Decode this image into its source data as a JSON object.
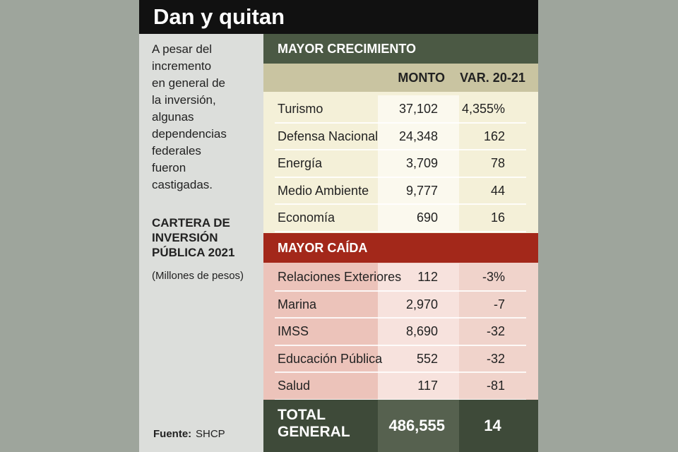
{
  "header": {
    "title": "Dan y quitan"
  },
  "sidebar": {
    "intro": [
      "A pesar del",
      "incremento",
      "en general de",
      "la inversión,",
      "algunas",
      "dependencias",
      "federales",
      "fueron",
      "castigadas."
    ],
    "subtitle": [
      "CARTERA DE",
      "INVERSIÓN",
      "PÚBLICA 2021"
    ],
    "units": "(Millones de pesos)",
    "source_label": "Fuente:",
    "source": "SHCP"
  },
  "table": {
    "columns": [
      "MONTO",
      "VAR. 20-21"
    ],
    "sections": [
      {
        "title": "MAYOR CRECIMIENTO",
        "rows": [
          [
            "Turismo",
            "37,102",
            "4,355%"
          ],
          [
            "Defensa Nacional",
            "24,348",
            "162"
          ],
          [
            "Energía",
            "3,709",
            "78"
          ],
          [
            "Medio Ambiente",
            "9,777",
            "44"
          ],
          [
            "Economía",
            "690",
            "16"
          ]
        ]
      },
      {
        "title": "MAYOR CAÍDA",
        "rows": [
          [
            "Relaciones Exteriores",
            "112",
            "-3%"
          ],
          [
            "Marina",
            "2,970",
            "-7"
          ],
          [
            "IMSS",
            "8,690",
            "-32"
          ],
          [
            "Educación Pública",
            "552",
            "-32"
          ],
          [
            "Salud",
            "117",
            "-81"
          ]
        ]
      }
    ],
    "total": {
      "label": [
        "TOTAL",
        "GENERAL"
      ],
      "monto": "486,555",
      "var": "14"
    }
  }
}
